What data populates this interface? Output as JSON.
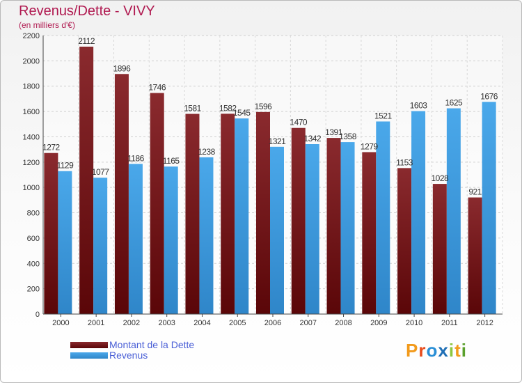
{
  "title": "Revenus/Dette - VIVY",
  "subtitle": "(en milliers d'€)",
  "logo_text": "Proxiti",
  "legend": [
    {
      "label": "Montant de la Dette",
      "color": "#6b0f13"
    },
    {
      "label": "Revenus",
      "color": "#3d9ee0"
    }
  ],
  "chart_data": {
    "type": "bar",
    "categories": [
      "2000",
      "2001",
      "2002",
      "2003",
      "2004",
      "2005",
      "2006",
      "2007",
      "2008",
      "2009",
      "2010",
      "2011",
      "2012"
    ],
    "series": [
      {
        "name": "Montant de la Dette",
        "color": "#6b0f13",
        "values": [
          1272,
          2112,
          1896,
          1746,
          1581,
          1582,
          1596,
          1470,
          1391,
          1279,
          1153,
          1028,
          921
        ],
        "labels": [
          "1272",
          "2112",
          "1896",
          "1746",
          "1581",
          "1582",
          "1596",
          "1470",
          "1391",
          "1279",
          "1153",
          "1028",
          "921"
        ]
      },
      {
        "name": "Revenus",
        "color": "#3d9ee0",
        "values": [
          1129,
          1077,
          1186,
          1165,
          1238,
          1545,
          1321,
          1342,
          1358,
          1521,
          1603,
          1625,
          1676
        ],
        "labels": [
          "1129",
          "1077",
          "1186",
          "1165",
          "1238",
          "1545",
          "1321",
          "1342",
          "1358",
          "1521",
          "1603",
          "1625",
          "1676"
        ]
      }
    ],
    "ylim": [
      0,
      2200
    ],
    "yticks": [
      0,
      200,
      400,
      600,
      800,
      1000,
      1200,
      1400,
      1600,
      1800,
      2000,
      2200
    ],
    "grid": true
  }
}
